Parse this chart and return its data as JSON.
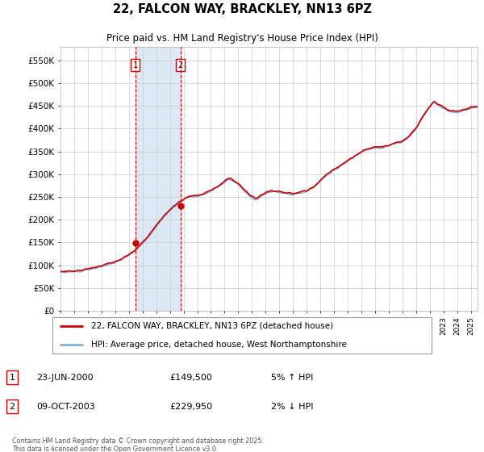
{
  "title": "22, FALCON WAY, BRACKLEY, NN13 6PZ",
  "subtitle": "Price paid vs. HM Land Registry's House Price Index (HPI)",
  "ylabel_ticks": [
    "£0",
    "£50K",
    "£100K",
    "£150K",
    "£200K",
    "£250K",
    "£300K",
    "£350K",
    "£400K",
    "£450K",
    "£500K",
    "£550K"
  ],
  "ytick_values": [
    0,
    50000,
    100000,
    150000,
    200000,
    250000,
    300000,
    350000,
    400000,
    450000,
    500000,
    550000
  ],
  "ylim": [
    0,
    580000
  ],
  "xlim_start": 1995.0,
  "xlim_end": 2025.5,
  "legend_line1": "22, FALCON WAY, BRACKLEY, NN13 6PZ (detached house)",
  "legend_line2": "HPI: Average price, detached house, West Northamptonshire",
  "annotation1_label": "1",
  "annotation1_date": "23-JUN-2000",
  "annotation1_price": "£149,500",
  "annotation1_hpi": "5% ↑ HPI",
  "annotation2_label": "2",
  "annotation2_date": "09-OCT-2003",
  "annotation2_price": "£229,950",
  "annotation2_hpi": "2% ↓ HPI",
  "footer": "Contains HM Land Registry data © Crown copyright and database right 2025.\nThis data is licensed under the Open Government Licence v3.0.",
  "sale1_x": 2000.47,
  "sale1_y": 149500,
  "sale2_x": 2003.77,
  "sale2_y": 229950,
  "vline1_x": 2000.47,
  "vline2_x": 2003.77,
  "line_color_red": "#cc0000",
  "line_color_blue": "#85b0d4",
  "vline_color": "#cc0000",
  "shade_color": "#dce9f5",
  "grid_color": "#cccccc",
  "bg_color": "#ffffff",
  "annotation_box_color": "#cc0000",
  "hpi_keypoints": [
    [
      1995.0,
      85000
    ],
    [
      1995.5,
      84000
    ],
    [
      1996.0,
      85500
    ],
    [
      1996.5,
      87000
    ],
    [
      1997.0,
      90000
    ],
    [
      1997.5,
      93000
    ],
    [
      1998.0,
      97000
    ],
    [
      1998.5,
      101000
    ],
    [
      1999.0,
      106000
    ],
    [
      1999.5,
      113000
    ],
    [
      2000.0,
      121000
    ],
    [
      2000.5,
      133000
    ],
    [
      2001.0,
      148000
    ],
    [
      2001.5,
      165000
    ],
    [
      2002.0,
      185000
    ],
    [
      2002.5,
      205000
    ],
    [
      2003.0,
      220000
    ],
    [
      2003.5,
      233000
    ],
    [
      2004.0,
      245000
    ],
    [
      2004.5,
      250000
    ],
    [
      2005.0,
      252000
    ],
    [
      2005.5,
      255000
    ],
    [
      2006.0,
      263000
    ],
    [
      2006.5,
      272000
    ],
    [
      2007.0,
      282000
    ],
    [
      2007.3,
      290000
    ],
    [
      2007.6,
      285000
    ],
    [
      2008.0,
      278000
    ],
    [
      2008.5,
      262000
    ],
    [
      2009.0,
      248000
    ],
    [
      2009.3,
      243000
    ],
    [
      2009.6,
      250000
    ],
    [
      2010.0,
      258000
    ],
    [
      2010.5,
      262000
    ],
    [
      2011.0,
      260000
    ],
    [
      2011.5,
      257000
    ],
    [
      2012.0,
      256000
    ],
    [
      2012.5,
      258000
    ],
    [
      2013.0,
      262000
    ],
    [
      2013.5,
      270000
    ],
    [
      2014.0,
      285000
    ],
    [
      2014.5,
      298000
    ],
    [
      2015.0,
      308000
    ],
    [
      2015.5,
      318000
    ],
    [
      2016.0,
      328000
    ],
    [
      2016.5,
      338000
    ],
    [
      2017.0,
      348000
    ],
    [
      2017.5,
      355000
    ],
    [
      2018.0,
      358000
    ],
    [
      2018.5,
      358000
    ],
    [
      2019.0,
      362000
    ],
    [
      2019.5,
      368000
    ],
    [
      2020.0,
      370000
    ],
    [
      2020.5,
      382000
    ],
    [
      2021.0,
      400000
    ],
    [
      2021.5,
      425000
    ],
    [
      2022.0,
      448000
    ],
    [
      2022.3,
      458000
    ],
    [
      2022.6,
      452000
    ],
    [
      2023.0,
      445000
    ],
    [
      2023.5,
      438000
    ],
    [
      2024.0,
      435000
    ],
    [
      2024.5,
      440000
    ],
    [
      2025.0,
      445000
    ],
    [
      2025.5,
      448000
    ]
  ],
  "noise_seed": 42,
  "noise_scale_hpi": 3500,
  "noise_scale_red": 4000
}
